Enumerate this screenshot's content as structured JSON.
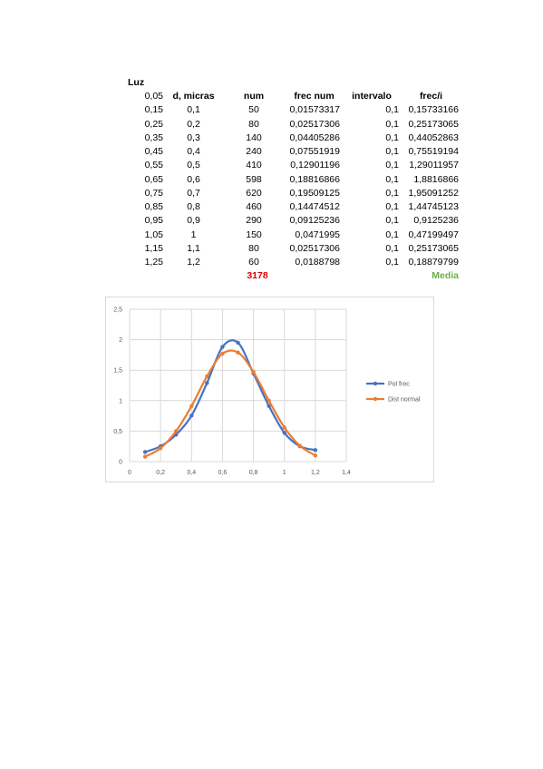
{
  "table": {
    "luz_label": "Luz",
    "headers": [
      "d, micras",
      "num",
      "frec num",
      "intervalo",
      "frec/i"
    ],
    "col_a": [
      "0,05",
      "0,15",
      "0,25",
      "0,35",
      "0,45",
      "0,55",
      "0,65",
      "0,75",
      "0,85",
      "0,95",
      "1,05",
      "1,15",
      "1,25"
    ],
    "rows": [
      [
        "0,1",
        "50",
        "0,01573317",
        "0,1",
        "0,15733166"
      ],
      [
        "0,2",
        "80",
        "0,02517306",
        "0,1",
        "0,25173065"
      ],
      [
        "0,3",
        "140",
        "0,04405286",
        "0,1",
        "0,44052863"
      ],
      [
        "0,4",
        "240",
        "0,07551919",
        "0,1",
        "0,75519194"
      ],
      [
        "0,5",
        "410",
        "0,12901196",
        "0,1",
        "1,29011957"
      ],
      [
        "0,6",
        "598",
        "0,18816866",
        "0,1",
        "1,8816866"
      ],
      [
        "0,7",
        "620",
        "0,19509125",
        "0,1",
        "1,95091252"
      ],
      [
        "0,8",
        "460",
        "0,14474512",
        "0,1",
        "1,44745123"
      ],
      [
        "0,9",
        "290",
        "0,09125236",
        "0,1",
        "0,9125236"
      ],
      [
        "1",
        "150",
        "0,0471995",
        "0,1",
        "0,47199497"
      ],
      [
        "1,1",
        "80",
        "0,02517306",
        "0,1",
        "0,25173065"
      ],
      [
        "1,2",
        "60",
        "0,0188798",
        "0,1",
        "0,18879799"
      ]
    ],
    "total": "3178",
    "media_label": "Media",
    "total_color": "#e00000",
    "media_color": "#70ad47"
  },
  "chart_data": {
    "type": "line",
    "xlim": [
      0,
      1.4
    ],
    "ylim": [
      0,
      2.5
    ],
    "x_ticks": [
      "0",
      "0,2",
      "0,4",
      "0,6",
      "0,8",
      "1",
      "1,2",
      "1,4"
    ],
    "y_ticks": [
      "0",
      "0,5",
      "1",
      "1,5",
      "2",
      "2,5"
    ],
    "grid": true,
    "legend_position": "right",
    "series": [
      {
        "name": "Pol frec",
        "color": "#4472c4",
        "x": [
          0.1,
          0.2,
          0.3,
          0.4,
          0.5,
          0.6,
          0.7,
          0.8,
          0.9,
          1.0,
          1.1,
          1.2
        ],
        "y": [
          0.157,
          0.252,
          0.441,
          0.755,
          1.29,
          1.882,
          1.951,
          1.447,
          0.913,
          0.472,
          0.252,
          0.189
        ]
      },
      {
        "name": "Dist normal",
        "color": "#ed7d31",
        "x": [
          0.1,
          0.2,
          0.3,
          0.4,
          0.5,
          0.6,
          0.7,
          0.8,
          0.9,
          1.0,
          1.1,
          1.2
        ],
        "y": [
          0.08,
          0.22,
          0.5,
          0.91,
          1.4,
          1.77,
          1.79,
          1.47,
          1.0,
          0.56,
          0.26,
          0.1
        ]
      }
    ]
  }
}
